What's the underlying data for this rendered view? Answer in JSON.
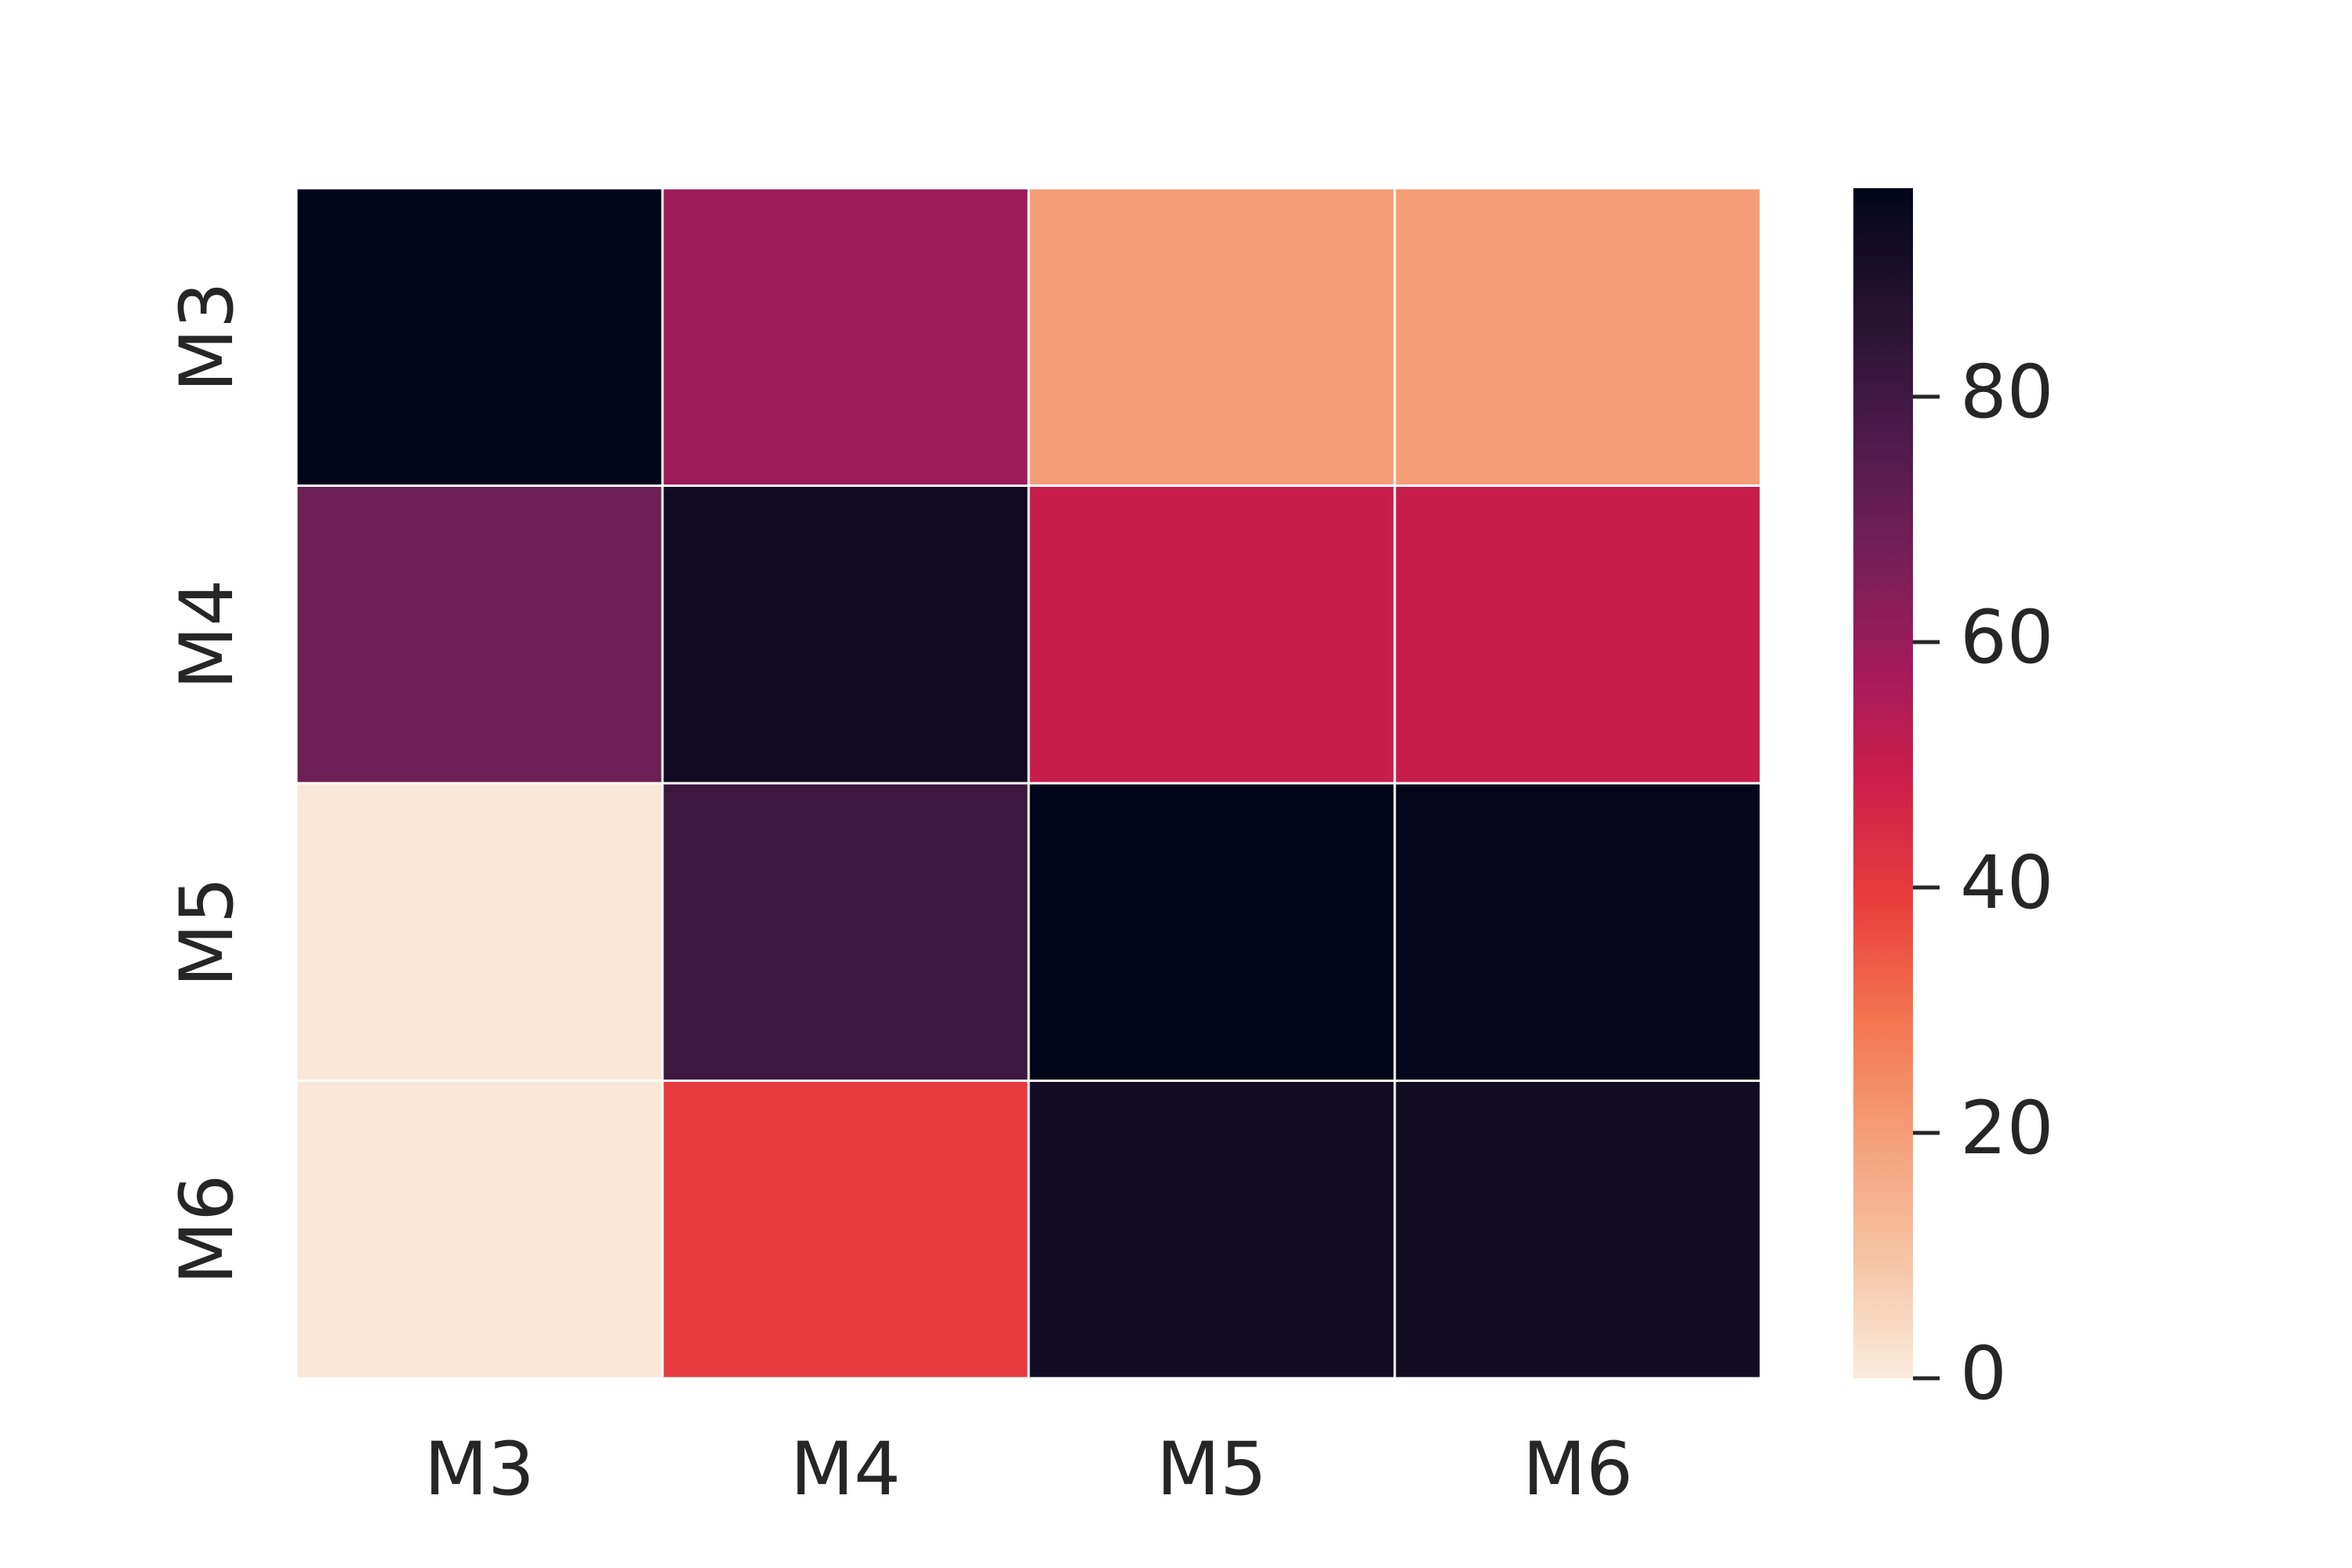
{
  "chart_data": {
    "type": "heatmap",
    "title": "",
    "xlabel": "",
    "ylabel": "",
    "x_categories": [
      "M3",
      "M4",
      "M5",
      "M6"
    ],
    "y_categories": [
      "M3",
      "M4",
      "M5",
      "M6"
    ],
    "values": [
      [
        97,
        59,
        20,
        20
      ],
      [
        69,
        93,
        50,
        50
      ],
      [
        1,
        81,
        97,
        96
      ],
      [
        1,
        40,
        92,
        92
      ]
    ],
    "colorbar": {
      "range": [
        0,
        97
      ],
      "ticks": [
        0,
        20,
        40,
        60,
        80
      ],
      "colormap": "rocket_r"
    },
    "colors": {
      "cell_border": "#ffffff",
      "text": "#262626"
    }
  }
}
